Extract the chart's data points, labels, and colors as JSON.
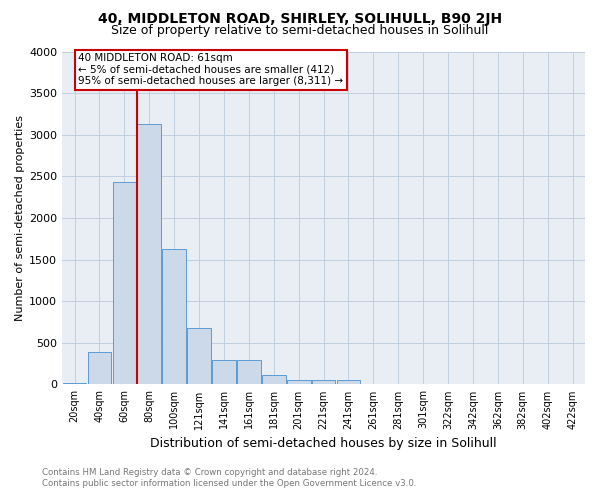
{
  "title": "40, MIDDLETON ROAD, SHIRLEY, SOLIHULL, B90 2JH",
  "subtitle": "Size of property relative to semi-detached houses in Solihull",
  "xlabel": "Distribution of semi-detached houses by size in Solihull",
  "ylabel": "Number of semi-detached properties",
  "footnote1": "Contains HM Land Registry data © Crown copyright and database right 2024.",
  "footnote2": "Contains public sector information licensed under the Open Government Licence v3.0.",
  "bar_labels": [
    "20sqm",
    "40sqm",
    "60sqm",
    "80sqm",
    "100sqm",
    "121sqm",
    "141sqm",
    "161sqm",
    "181sqm",
    "201sqm",
    "221sqm",
    "241sqm",
    "261sqm",
    "281sqm",
    "301sqm",
    "322sqm",
    "342sqm",
    "362sqm",
    "382sqm",
    "402sqm",
    "422sqm"
  ],
  "bar_values": [
    20,
    390,
    2430,
    3130,
    1630,
    680,
    295,
    295,
    115,
    55,
    55,
    50,
    8,
    3,
    1,
    0,
    0,
    0,
    0,
    0,
    0
  ],
  "bar_color": "#ccd9e8",
  "bar_edge_color": "#5b9bd5",
  "red_line_index": 2,
  "annotation_line_color": "#cc0000",
  "annotation_text": "40 MIDDLETON ROAD: 61sqm\n← 5% of semi-detached houses are smaller (412)\n95% of semi-detached houses are larger (8,311) →",
  "annotation_box_color": "#ffffff",
  "annotation_box_edge_color": "#cc0000",
  "ylim": [
    0,
    4000
  ],
  "yticks": [
    0,
    500,
    1000,
    1500,
    2000,
    2500,
    3000,
    3500,
    4000
  ],
  "grid_color": "#c0cfe0",
  "background_color": "#e8eef4",
  "title_fontsize": 10,
  "subtitle_fontsize": 9,
  "xlabel_fontsize": 9,
  "ylabel_fontsize": 8
}
